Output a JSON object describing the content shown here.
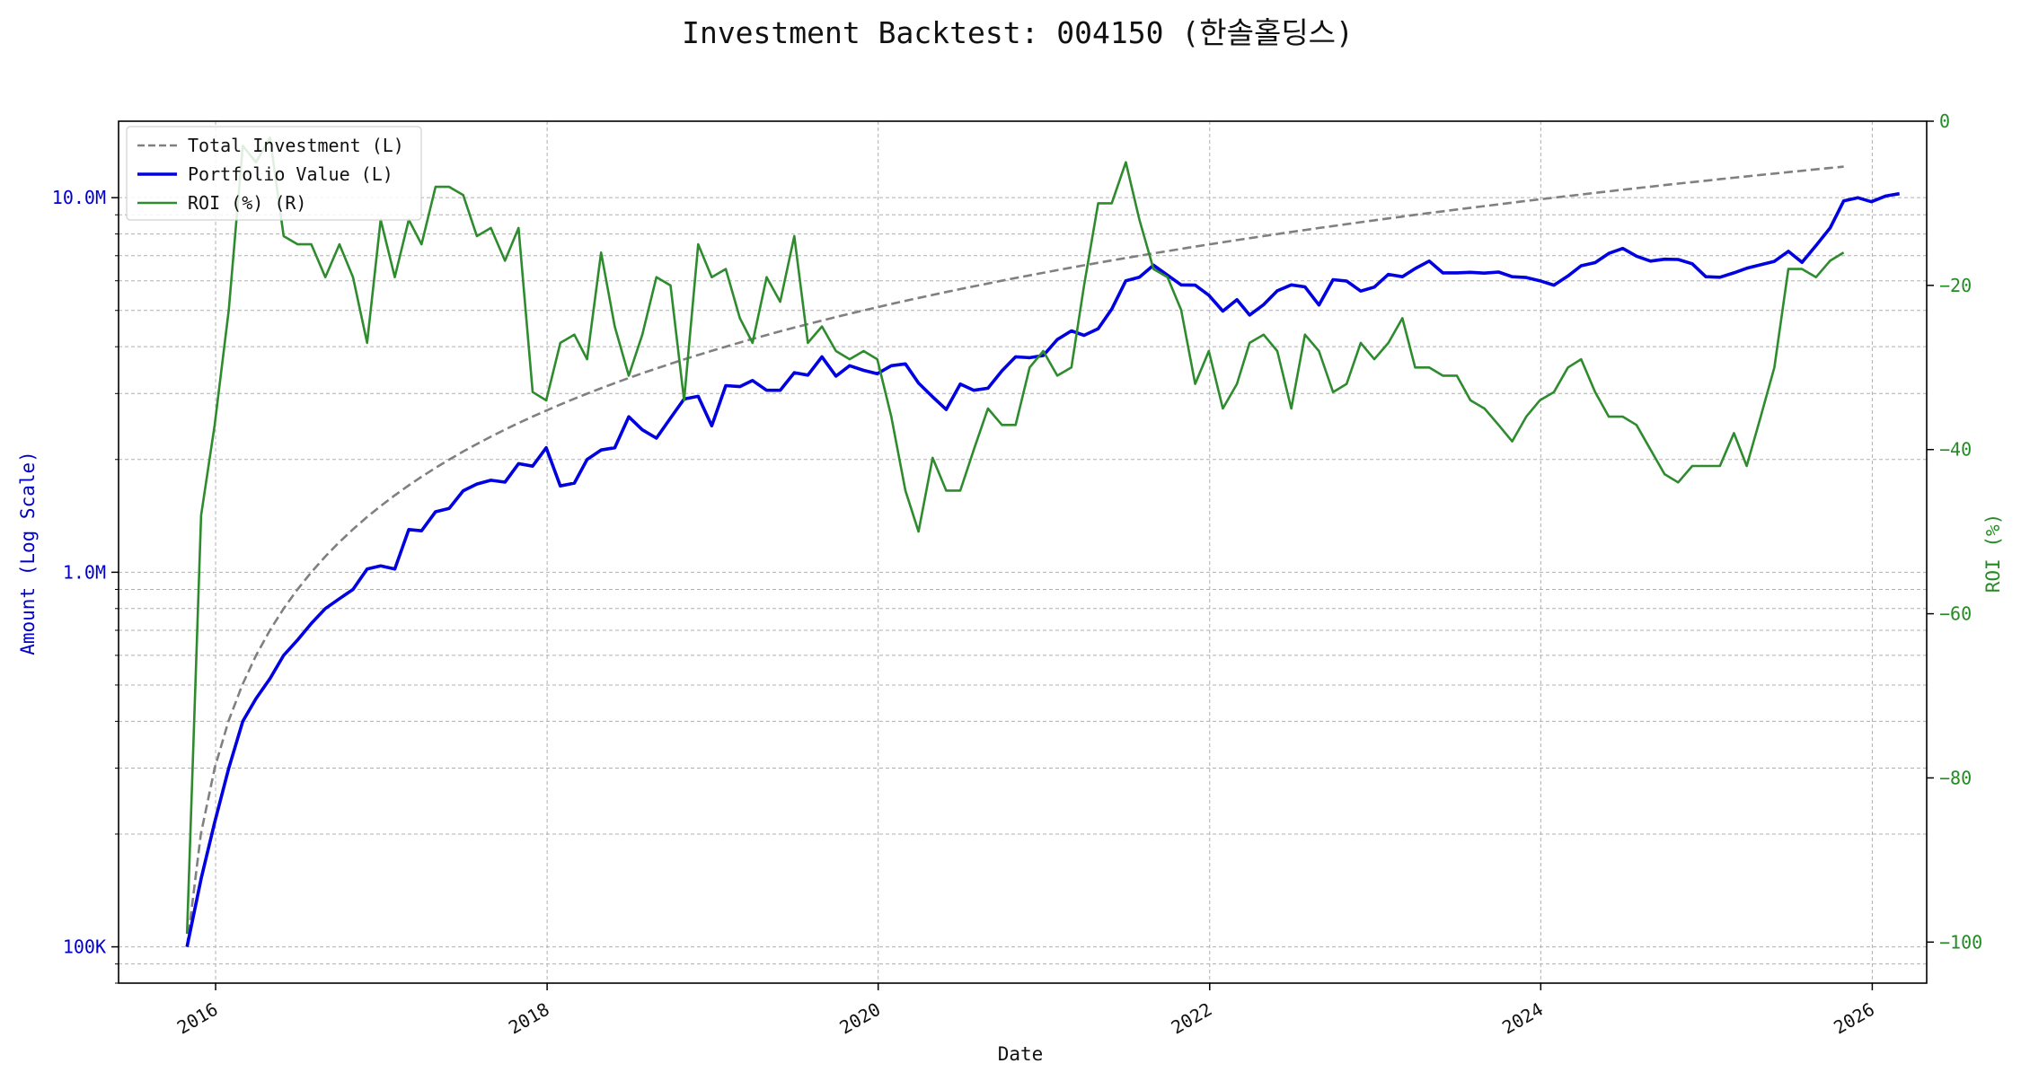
{
  "chart_data": {
    "type": "line",
    "title": "Investment Backtest: 004150 (한솔홀딩스)",
    "xlabel": "Date",
    "ylabel_left": "Amount (Log Scale)",
    "ylabel_right": "ROI (%)",
    "x_range": [
      "2015-06-01",
      "2026-05-01"
    ],
    "x_ticks": [
      "2016",
      "2018",
      "2020",
      "2022",
      "2024",
      "2026"
    ],
    "y_left_scale": "log",
    "y_left_range": [
      80000,
      16000000
    ],
    "y_left_ticks": [
      {
        "value": 100000,
        "label": "100K"
      },
      {
        "value": 1000000,
        "label": "1.0M"
      },
      {
        "value": 10000000,
        "label": "10.0M"
      }
    ],
    "y_right_range": [
      -105,
      0
    ],
    "y_right_ticks": [
      0,
      -20,
      -40,
      -60,
      -80,
      -100
    ],
    "grid": true,
    "legend_position": "top-left",
    "colors": {
      "total": "#808080",
      "portfolio": "#0000e0",
      "roi": "#2e8b2e",
      "left_axis": "#0000cc",
      "right_axis": "#228b22"
    },
    "series": [
      {
        "name": "Total Investment (L)",
        "axis": "left",
        "style": "dashed",
        "generator": "monthly_contribution",
        "start": "2015-10-30",
        "end": "2025-10-30",
        "monthly_amount": 100000,
        "end_value": 12100000
      },
      {
        "name": "Portfolio Value (L)",
        "axis": "left",
        "style": "solid",
        "dates_from": "2015-10-30",
        "dates_to": "2025-10-30",
        "monthly_values": [
          100000,
          152000,
          215000,
          300000,
          400000,
          460000,
          520000,
          600000,
          660000,
          730000,
          800000,
          850000,
          900000,
          1020000,
          1040000,
          1020000,
          1300000,
          1290000,
          1450000,
          1480000,
          1650000,
          1720000,
          1760000,
          1740000,
          1950000,
          1920000,
          2150000,
          1700000,
          1730000,
          2000000,
          2120000,
          2150000,
          2600000,
          2400000,
          2280000,
          2580000,
          2900000,
          2950000,
          2460000,
          3150000,
          3130000,
          3250000,
          3060000,
          3060000,
          3410000,
          3360000,
          3760000,
          3340000,
          3560000,
          3460000,
          3390000,
          3560000,
          3600000,
          3200000,
          2940000,
          2720000,
          3180000,
          3060000,
          3100000,
          3450000,
          3760000,
          3740000,
          3790000,
          4180000,
          4410000,
          4290000,
          4470000,
          5040000,
          6000000,
          6130000,
          6600000,
          6210000,
          5850000,
          5840000,
          5490000,
          4980000,
          5340000,
          4860000,
          5180000,
          5640000,
          5850000,
          5780000,
          5170000,
          6040000,
          5990000,
          5630000,
          5770000,
          6240000,
          6150000,
          6470000,
          6770000,
          6300000,
          6300000,
          6320000,
          6290000,
          6330000,
          6150000,
          6120000,
          6000000,
          5840000,
          6180000,
          6580000,
          6710000,
          7100000,
          7320000,
          6980000,
          6770000,
          6850000,
          6840000,
          6660000,
          6150000,
          6130000,
          6300000,
          6480000,
          6620000,
          6760000,
          7190000,
          6720000,
          7450000,
          8300000,
          9800000,
          10000000,
          9750000,
          10100000,
          10250000
        ]
      },
      {
        "name": "ROI (%) (R)",
        "axis": "right",
        "style": "solid",
        "dates_from": "2015-10-30",
        "dates_to": "2025-10-30",
        "monthly_values": [
          -99,
          -48,
          -37,
          -23,
          -3,
          -5,
          -2,
          -14,
          -15,
          -15,
          -19,
          -15,
          -19,
          -27,
          -12,
          -19,
          -12,
          -15,
          -8,
          -8,
          -9,
          -14,
          -13,
          -17,
          -13,
          -33,
          -34,
          -27,
          -26,
          -29,
          -16,
          -25,
          -31,
          -26,
          -19,
          -20,
          -34,
          -15,
          -19,
          -18,
          -24,
          -27,
          -19,
          -22,
          -14,
          -27,
          -25,
          -28,
          -29,
          -28,
          -29,
          -36,
          -45,
          -50,
          -41,
          -45,
          -45,
          -40,
          -35,
          -37,
          -37,
          -30,
          -28,
          -31,
          -30,
          -20,
          -10,
          -10,
          -5,
          -12,
          -18,
          -19,
          -23,
          -32,
          -28,
          -35,
          -32,
          -27,
          -26,
          -28,
          -35,
          -26,
          -28,
          -33,
          -32,
          -27,
          -29,
          -27,
          -24,
          -30,
          -30,
          -31,
          -31,
          -34,
          -35,
          -37,
          -39,
          -36,
          -34,
          -33,
          -30,
          -29,
          -33,
          -36,
          -36,
          -37,
          -40,
          -43,
          -44,
          -42,
          -42,
          -42,
          -38,
          -42,
          -36,
          -30,
          -18,
          -18,
          -19,
          -17,
          -16
        ]
      }
    ]
  }
}
